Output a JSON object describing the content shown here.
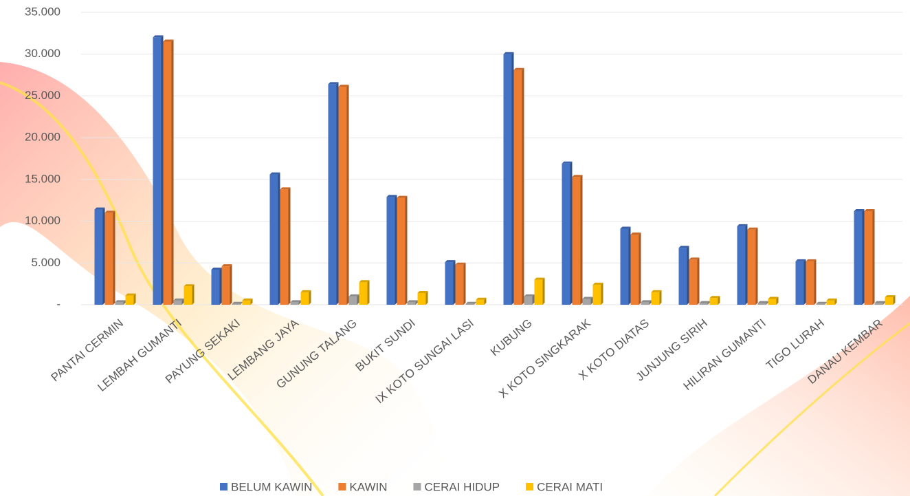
{
  "chart_data": {
    "type": "bar",
    "categories": [
      "PANTAI CERMIN",
      "LEMBAH GUMANTI",
      "PAYUNG SEKAKI",
      "LEMBANG JAYA",
      "GUNUNG TALANG",
      "BUKIT SUNDI",
      "IX KOTO SUNGAI LASI",
      "KUBUNG",
      "X KOTO SINGKARAK",
      "X KOTO DIATAS",
      "JUNJUNG SIRIH",
      "HILIRAN GUMANTI",
      "TIGO LURAH",
      "DANAU KEMBAR"
    ],
    "series": [
      {
        "name": "BELUM KAWIN",
        "color": "#4472c4",
        "values": [
          11400,
          32000,
          4200,
          15600,
          26400,
          12900,
          5100,
          30000,
          16900,
          9100,
          6800,
          9400,
          5200,
          11200
        ]
      },
      {
        "name": "KAWIN",
        "color": "#ed7d31",
        "values": [
          11000,
          31500,
          4600,
          13800,
          26100,
          12800,
          4800,
          28100,
          15300,
          8400,
          5400,
          9000,
          5200,
          11200
        ]
      },
      {
        "name": "CERAI HIDUP",
        "color": "#a5a5a5",
        "values": [
          300,
          500,
          100,
          300,
          1000,
          300,
          100,
          1000,
          700,
          300,
          200,
          200,
          100,
          200
        ]
      },
      {
        "name": "CERAI MATI",
        "color": "#ffc000",
        "values": [
          1100,
          2200,
          500,
          1500,
          2700,
          1400,
          600,
          3000,
          2400,
          1500,
          800,
          700,
          500,
          900
        ]
      }
    ],
    "ylim": [
      0,
      35000
    ],
    "yticks": [
      {
        "value": 0,
        "label": "-"
      },
      {
        "value": 5000,
        "label": "5.000"
      },
      {
        "value": 10000,
        "label": "10.000"
      },
      {
        "value": 15000,
        "label": "15.000"
      },
      {
        "value": 20000,
        "label": "20.000"
      },
      {
        "value": 25000,
        "label": "25.000"
      },
      {
        "value": 30000,
        "label": "30.000"
      },
      {
        "value": 35000,
        "label": "35.000"
      }
    ],
    "grid": true
  }
}
